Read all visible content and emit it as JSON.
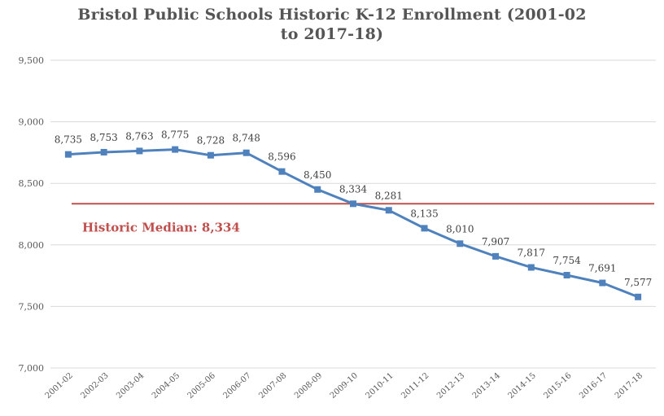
{
  "chart_data": {
    "type": "line",
    "title_line1": "Bristol Public Schools Historic K-12 Enrollment (2001-02",
    "title_line2": "to 2017-18)",
    "categories": [
      "2001-02",
      "2002-03",
      "2003-04",
      "2004-05",
      "2005-06",
      "2006-07",
      "2007-08",
      "2008-09",
      "2009-10",
      "2010-11",
      "2011-12",
      "2012-13",
      "2013-14",
      "2014-15",
      "2015-16",
      "2016-17",
      "2017-18"
    ],
    "series": [
      {
        "values": [
          8735,
          8753,
          8763,
          8775,
          8728,
          8748,
          8596,
          8450,
          8334,
          8281,
          8135,
          8010,
          7907,
          7817,
          7754,
          7691,
          7577
        ],
        "labels": [
          "8,735",
          "8,753",
          "8,763",
          "8,775",
          "8,728",
          "8,748",
          "8,596",
          "8,450",
          "8,334",
          "8,281",
          "8,135",
          "8,010",
          "7,907",
          "7,817",
          "7,754",
          "7,691",
          "7,577"
        ],
        "color": "#4f81bd"
      }
    ],
    "reference_line": {
      "value": 8334,
      "label": "Historic Median: 8,334",
      "color": "#c0504d"
    },
    "yticks": [
      7000,
      7500,
      8000,
      8500,
      9000,
      9500
    ],
    "ytick_labels": [
      "7,000",
      "7,500",
      "8,000",
      "8,500",
      "9,000",
      "9,500"
    ],
    "ylim": [
      7000,
      9500
    ],
    "grid": true,
    "legend": "none"
  }
}
